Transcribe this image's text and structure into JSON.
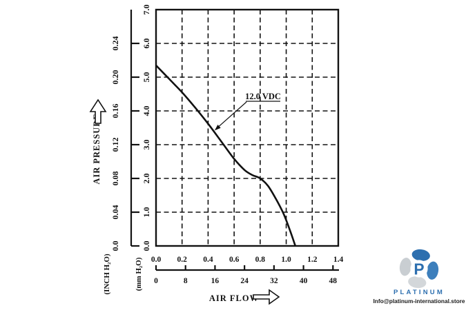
{
  "chart_data": {
    "type": "line",
    "xlabel": "AIR FLOW",
    "ylabel": "AIR PRESSURE",
    "y_unit_inch": "(INCH H₂O)",
    "y_unit_mm": "(mm H₂O)",
    "grid": "dashed",
    "x_range_row1": [
      0,
      1.4
    ],
    "y_range_mm": [
      0,
      7
    ],
    "x_row2_per_row1": 35.315,
    "x_ticks_row1": [
      "0.0",
      "0.2",
      "0.4",
      "0.6",
      "0.8",
      "1.0",
      "1.2",
      "1.4"
    ],
    "x_ticks_row2": [
      "0",
      "8",
      "16",
      "24",
      "32",
      "40",
      "48"
    ],
    "y_ticks_mm": [
      "0.0",
      "1.0",
      "2.0",
      "3.0",
      "4.0",
      "5.0",
      "6.0",
      "7.0"
    ],
    "y_ticks_inch": [
      "0.0",
      "0.04",
      "0.08",
      "0.12",
      "0.16",
      "0.20",
      "0.24"
    ],
    "series": [
      {
        "name": "12.0 VDC",
        "x": [
          0.0,
          0.1,
          0.2,
          0.3,
          0.4,
          0.5,
          0.6,
          0.68,
          0.74,
          0.8,
          0.86,
          0.92,
          0.98,
          1.03,
          1.07
        ],
        "y_mm": [
          5.35,
          4.95,
          4.55,
          4.1,
          3.62,
          3.1,
          2.58,
          2.25,
          2.1,
          2.0,
          1.78,
          1.4,
          0.95,
          0.45,
          0.0
        ]
      }
    ],
    "annotation": {
      "text": "12.0 VDC",
      "attach_x": 0.45,
      "attach_y": 3.42
    }
  },
  "branding": {
    "name": "PLATINUM",
    "email": "Info@platinum-international.store"
  }
}
